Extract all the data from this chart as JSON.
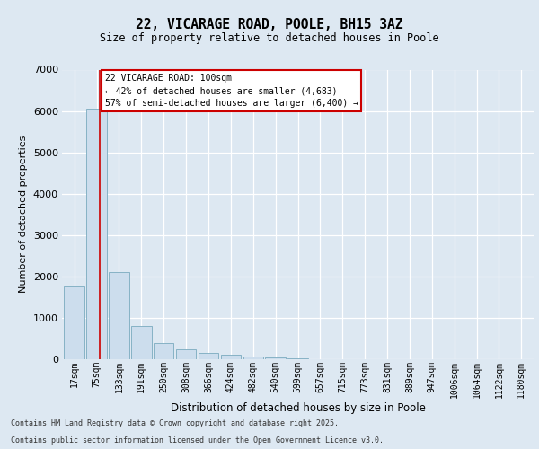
{
  "title_line1": "22, VICARAGE ROAD, POOLE, BH15 3AZ",
  "title_line2": "Size of property relative to detached houses in Poole",
  "xlabel": "Distribution of detached houses by size in Poole",
  "ylabel": "Number of detached properties",
  "categories": [
    "17sqm",
    "75sqm",
    "133sqm",
    "191sqm",
    "250sqm",
    "308sqm",
    "366sqm",
    "424sqm",
    "482sqm",
    "540sqm",
    "599sqm",
    "657sqm",
    "715sqm",
    "773sqm",
    "831sqm",
    "889sqm",
    "947sqm",
    "1006sqm",
    "1064sqm",
    "1122sqm",
    "1180sqm"
  ],
  "values": [
    1750,
    6050,
    2100,
    800,
    400,
    230,
    160,
    100,
    60,
    35,
    18,
    8,
    5,
    3,
    2,
    1,
    1,
    1,
    0,
    0,
    0
  ],
  "bar_color": "#ccdded",
  "bar_edge_color": "#7aaabf",
  "property_line_color": "#cc0000",
  "property_line_x": 1.15,
  "annotation_text": "22 VICARAGE ROAD: 100sqm\n← 42% of detached houses are smaller (4,683)\n57% of semi-detached houses are larger (6,400) →",
  "annotation_box_edge_color": "#cc0000",
  "annotation_box_fill": "#ffffff",
  "ylim": [
    0,
    7000
  ],
  "yticks": [
    0,
    1000,
    2000,
    3000,
    4000,
    5000,
    6000,
    7000
  ],
  "footer_line1": "Contains HM Land Registry data © Crown copyright and database right 2025.",
  "footer_line2": "Contains public sector information licensed under the Open Government Licence v3.0.",
  "bg_color": "#dde8f2"
}
